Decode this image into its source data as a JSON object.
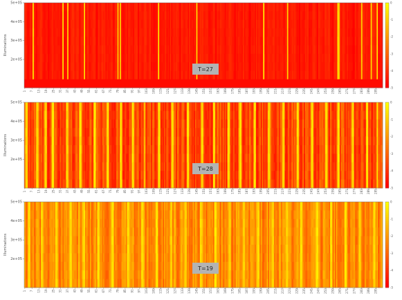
{
  "chart_data": [
    {
      "type": "heatmap",
      "annotation": "T=27",
      "ylabel": "Illuminations",
      "y_ticks": [
        "2e+05",
        "3e+05",
        "4e+05",
        "5e+05"
      ],
      "ylim": [
        50000,
        500000
      ],
      "colorbar_ticks": [
        "0",
        "-1",
        "-2",
        "-3",
        "-4",
        "-5"
      ],
      "colorbar_range": [
        -5,
        0
      ],
      "palette": [
        "#ff0000",
        "#ffff00"
      ],
      "n_columns": 300,
      "x_tick_every": 6,
      "base_level": -4.5,
      "bright_columns": [
        7,
        32,
        36,
        50,
        78,
        80,
        112,
        144,
        200,
        220,
        262,
        263,
        282,
        290,
        295
      ],
      "hot_columns": [
        20,
        60,
        95,
        130,
        160,
        176,
        188,
        230,
        245,
        258,
        275
      ],
      "noise": 0.35
    },
    {
      "type": "heatmap",
      "annotation": "T=28",
      "ylabel": "Illuminations",
      "y_ticks": [
        "2e+05",
        "3e+05",
        "4e+05",
        "5e+05"
      ],
      "ylim": [
        50000,
        500000
      ],
      "colorbar_ticks": [
        "0",
        "-1",
        "-2",
        "-3",
        "-4",
        "-5"
      ],
      "colorbar_range": [
        -5,
        0
      ],
      "palette": [
        "#ff0000",
        "#ffff00"
      ],
      "n_columns": 300,
      "x_tick_every": 6,
      "base_level": -3.6,
      "bright_columns": [
        1,
        2,
        10,
        11,
        17,
        18,
        23,
        24,
        35,
        36,
        46,
        47,
        58,
        59,
        69,
        70,
        80,
        81,
        90,
        91,
        100,
        112,
        113,
        123,
        124,
        136,
        137,
        148,
        149,
        158,
        159,
        170,
        171,
        180,
        181,
        192,
        193,
        204,
        205,
        216,
        217,
        228,
        229,
        240,
        241,
        252,
        253,
        262,
        263,
        274,
        275,
        286,
        287,
        295
      ],
      "hot_columns": [
        5,
        28,
        41,
        53,
        64,
        75,
        86,
        96,
        106,
        118,
        130,
        142,
        154,
        165,
        176,
        187,
        198,
        210,
        222,
        234,
        246,
        258,
        268,
        280,
        291
      ],
      "noise": 0.9
    },
    {
      "type": "heatmap",
      "annotation": "T=19",
      "ylabel": "Illuminations",
      "y_ticks": [
        "2e+05",
        "3e+05",
        "4e+05",
        "5e+05"
      ],
      "ylim": [
        50000,
        500000
      ],
      "colorbar_ticks": [
        "0",
        "-1",
        "-2",
        "-3",
        "-4",
        "-5"
      ],
      "colorbar_range": [
        -5,
        0
      ],
      "palette": [
        "#ff0000",
        "#ffff00"
      ],
      "n_columns": 300,
      "x_tick_every": 6,
      "base_level": -2.2,
      "bright_columns": [
        3,
        4,
        14,
        15,
        26,
        27,
        38,
        39,
        49,
        50,
        61,
        62,
        73,
        74,
        86,
        87,
        98,
        99,
        110,
        111,
        122,
        123,
        134,
        135,
        147,
        148,
        159,
        160,
        171,
        172,
        183,
        184,
        195,
        196,
        207,
        208,
        219,
        220,
        231,
        232,
        244,
        245,
        256,
        257,
        268,
        269,
        280,
        281,
        292,
        293
      ],
      "hot_columns": [
        8,
        20,
        32,
        44,
        56,
        68,
        80,
        92,
        104,
        116,
        128,
        140,
        152,
        164,
        176,
        188,
        200,
        212,
        224,
        236,
        248,
        260,
        272,
        284,
        296
      ],
      "noise": 0.8
    }
  ]
}
